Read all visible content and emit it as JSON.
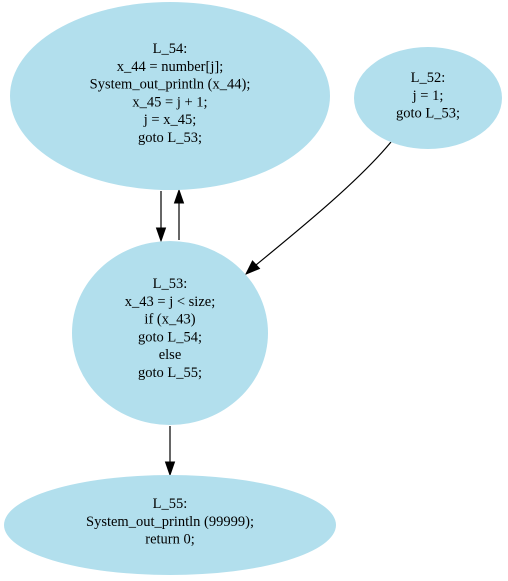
{
  "style": {
    "node_fill": "#b2dfed",
    "edge_color": "#000000"
  },
  "nodes": [
    {
      "id": "L_54",
      "lines": [
        "L_54:",
        "x_44 = number[j];",
        "System_out_println (x_44);",
        "x_45 = j + 1;",
        "j = x_45;",
        "goto L_53;"
      ]
    },
    {
      "id": "L_52",
      "lines": [
        "L_52:",
        "j = 1;",
        "goto L_53;"
      ]
    },
    {
      "id": "L_53",
      "lines": [
        "L_53:",
        "x_43 = j < size;",
        "if (x_43)",
        "goto L_54;",
        "else",
        "goto L_55;"
      ]
    },
    {
      "id": "L_55",
      "lines": [
        "L_55:",
        "System_out_println (99999);",
        "return 0;"
      ]
    }
  ],
  "edges": [
    {
      "from": "L_54",
      "to": "L_53"
    },
    {
      "from": "L_53",
      "to": "L_54"
    },
    {
      "from": "L_52",
      "to": "L_53"
    },
    {
      "from": "L_53",
      "to": "L_55"
    }
  ]
}
